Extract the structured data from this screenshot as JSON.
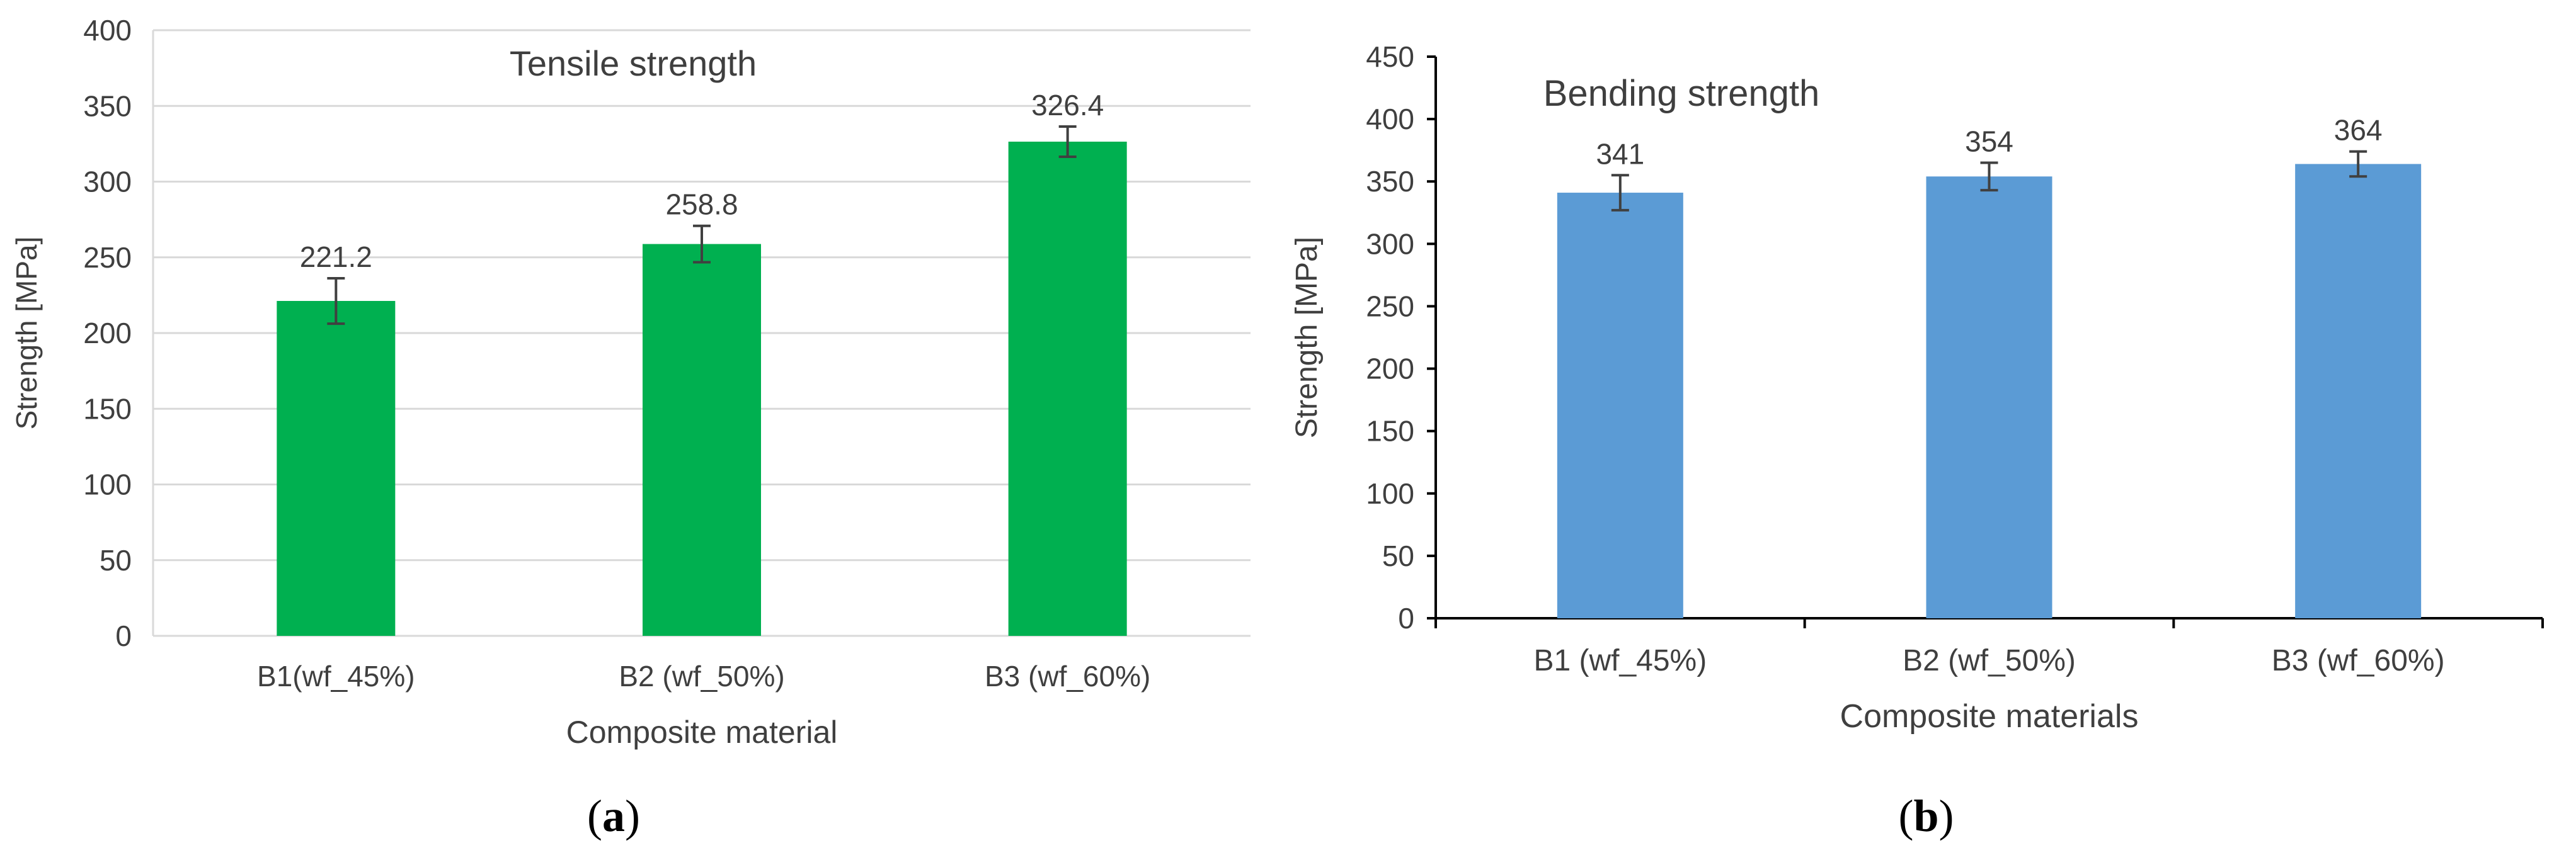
{
  "chart_data": [
    {
      "type": "bar",
      "title": "Tensile strength",
      "xlabel": "Composite material",
      "ylabel": "Strength [MPa]",
      "categories": [
        "B1(wf_45%)",
        "B2 (wf_50%)",
        "B3 (wf_60%)"
      ],
      "values": [
        221.2,
        258.8,
        326.4
      ],
      "data_labels": [
        "221.2",
        "258.8",
        "326.4"
      ],
      "error": [
        15,
        12,
        10
      ],
      "ylim": [
        0,
        400
      ],
      "yticks": [
        "0",
        "50",
        "100",
        "150",
        "200",
        "250",
        "300",
        "350",
        "400"
      ],
      "grid": true,
      "color": "#00b050",
      "caption_letter": "a"
    },
    {
      "type": "bar",
      "title": "Bending strength",
      "xlabel": "Composite materials",
      "ylabel": "Strength [MPa]",
      "categories": [
        "B1 (wf_45%)",
        "B2 (wf_50%)",
        "B3 (wf_60%)"
      ],
      "values": [
        341,
        354,
        364
      ],
      "data_labels": [
        "341",
        "354",
        "364"
      ],
      "error": [
        14,
        11,
        10
      ],
      "ylim": [
        0,
        450
      ],
      "yticks": [
        "0",
        "50",
        "100",
        "150",
        "200",
        "250",
        "300",
        "350",
        "400",
        "450"
      ],
      "grid": false,
      "color": "#5b9bd5",
      "caption_letter": "b"
    }
  ]
}
